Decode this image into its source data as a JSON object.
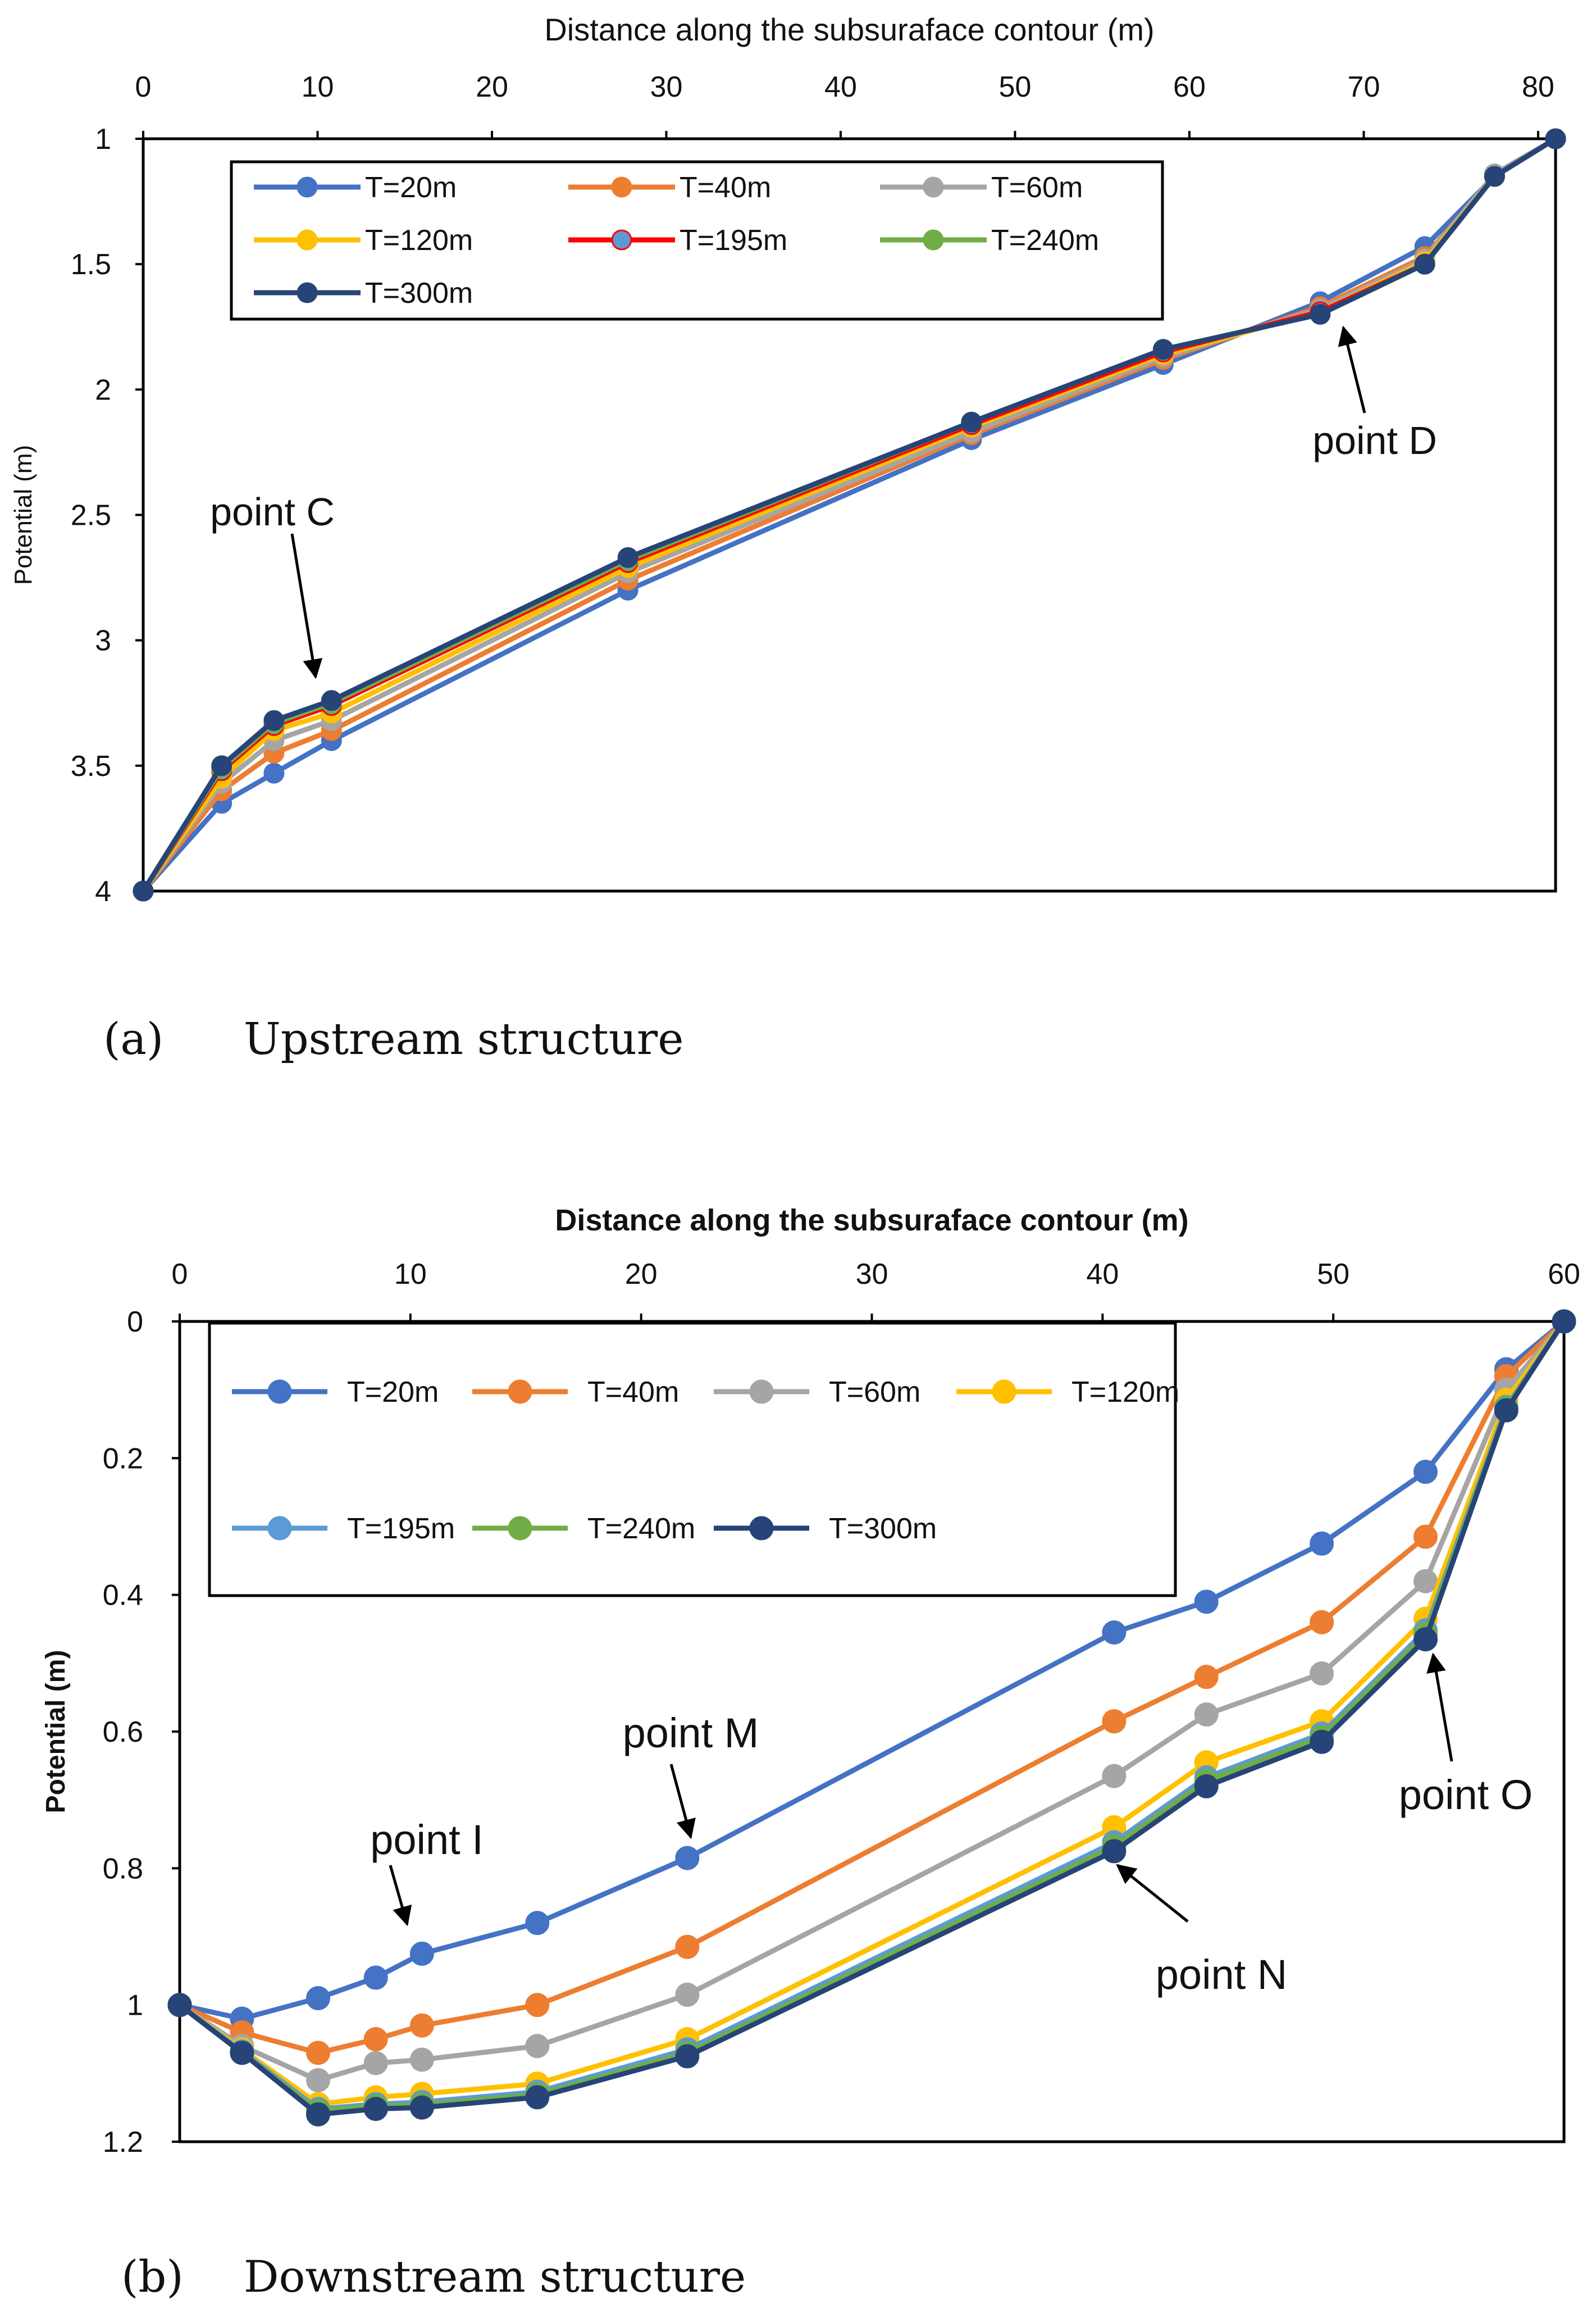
{
  "chart_data": [
    {
      "type": "line",
      "panel": "a",
      "xlabel": "Distance along the subsuraface contour (m)",
      "ylabel": "Potential (m)",
      "xlim": [
        0,
        81
      ],
      "ylim": [
        1,
        4
      ],
      "y_inverted": true,
      "x_axis_position": "top",
      "xticks": [
        0,
        10,
        20,
        30,
        40,
        50,
        60,
        70,
        80
      ],
      "yticks": [
        1,
        1.5,
        2,
        2.5,
        3,
        3.5,
        4
      ],
      "ytick_labels": [
        "1",
        "1.5",
        "2",
        "2.5",
        "3",
        "3.5",
        "4"
      ],
      "legend_placement": "top-left",
      "legend_columns": 3,
      "x": [
        0,
        4.5,
        7.5,
        10.8,
        27.8,
        47.5,
        58.5,
        67.5,
        73.5,
        77.5,
        81
      ],
      "series": [
        {
          "name": "T=20m",
          "color": "#4472C4",
          "values": [
            4.0,
            3.65,
            3.53,
            3.4,
            2.8,
            2.2,
            1.9,
            1.65,
            1.43,
            1.15,
            1.0
          ]
        },
        {
          "name": "T=40m",
          "color": "#ED7D31",
          "values": [
            4.0,
            3.6,
            3.45,
            3.36,
            2.76,
            2.18,
            1.88,
            1.67,
            1.47,
            1.15,
            1.0
          ]
        },
        {
          "name": "T=60m",
          "color": "#A5A5A5",
          "values": [
            4.0,
            3.57,
            3.4,
            3.32,
            2.73,
            2.17,
            1.87,
            1.68,
            1.48,
            1.14,
            1.0
          ]
        },
        {
          "name": "T=120m",
          "color": "#FFC000",
          "values": [
            4.0,
            3.55,
            3.36,
            3.29,
            2.71,
            2.15,
            1.86,
            1.69,
            1.49,
            1.15,
            1.0
          ]
        },
        {
          "name": "T=195m",
          "color": "#FF0000",
          "marker_color": "#5B9BD5",
          "values": [
            4.0,
            3.52,
            3.34,
            3.26,
            2.69,
            2.14,
            1.85,
            1.69,
            1.5,
            1.15,
            1.0
          ]
        },
        {
          "name": "T=240m",
          "color": "#70AD47",
          "values": [
            4.0,
            3.51,
            3.33,
            3.25,
            2.68,
            2.13,
            1.84,
            1.7,
            1.5,
            1.15,
            1.0
          ]
        },
        {
          "name": "T=300m",
          "color": "#264478",
          "values": [
            4.0,
            3.5,
            3.32,
            3.24,
            2.67,
            2.13,
            1.84,
            1.7,
            1.5,
            1.15,
            1.0
          ]
        }
      ],
      "annotations": [
        {
          "text": "point C",
          "x": 10.8,
          "y": 3.24
        },
        {
          "text": "point D",
          "x": 67.5,
          "y": 1.7
        }
      ],
      "caption_letter": "(a)",
      "caption_text": "Upstream structure"
    },
    {
      "type": "line",
      "panel": "b",
      "xlabel": "Distance along the subsuraface contour (m)",
      "ylabel": "Potential (m)",
      "xlim": [
        0,
        60
      ],
      "ylim": [
        0,
        1.2
      ],
      "y_inverted": true,
      "x_axis_position": "top",
      "xticks": [
        0,
        10,
        20,
        30,
        40,
        50,
        60
      ],
      "yticks": [
        0,
        0.2,
        0.4,
        0.6,
        0.8,
        1,
        1.2
      ],
      "ytick_labels": [
        "0",
        "0.2",
        "0.4",
        "0.6",
        "0.8",
        "1",
        "1.2"
      ],
      "legend_placement": "top-left",
      "legend_columns": 4,
      "x": [
        0,
        2.7,
        6,
        8.5,
        10.5,
        15.5,
        22,
        40.5,
        44.5,
        49.5,
        54,
        57.5,
        60
      ],
      "series": [
        {
          "name": "T=20m",
          "color": "#4472C4",
          "values": [
            1.0,
            1.02,
            0.99,
            0.96,
            0.925,
            0.88,
            0.785,
            0.455,
            0.41,
            0.325,
            0.22,
            0.07,
            0.0
          ]
        },
        {
          "name": "T=40m",
          "color": "#ED7D31",
          "values": [
            1.0,
            1.04,
            1.07,
            1.05,
            1.03,
            1.0,
            0.915,
            0.585,
            0.52,
            0.44,
            0.315,
            0.08,
            0.0
          ]
        },
        {
          "name": "T=60m",
          "color": "#A5A5A5",
          "values": [
            1.0,
            1.06,
            1.11,
            1.085,
            1.08,
            1.06,
            0.985,
            0.665,
            0.575,
            0.515,
            0.38,
            0.1,
            0.0
          ]
        },
        {
          "name": "T=120m",
          "color": "#FFC000",
          "values": [
            1.0,
            1.065,
            1.145,
            1.135,
            1.13,
            1.115,
            1.05,
            0.74,
            0.645,
            0.585,
            0.435,
            0.115,
            0.0
          ]
        },
        {
          "name": "T=195m",
          "color": "#5B9BD5",
          "values": [
            1.0,
            1.068,
            1.152,
            1.145,
            1.142,
            1.127,
            1.065,
            0.762,
            0.667,
            0.603,
            0.452,
            0.125,
            0.0
          ]
        },
        {
          "name": "T=240m",
          "color": "#70AD47",
          "values": [
            1.0,
            1.07,
            1.155,
            1.148,
            1.146,
            1.131,
            1.07,
            0.768,
            0.672,
            0.608,
            0.457,
            0.127,
            0.0
          ]
        },
        {
          "name": "T=300m",
          "color": "#264478",
          "values": [
            1.0,
            1.07,
            1.16,
            1.152,
            1.15,
            1.135,
            1.075,
            0.775,
            0.68,
            0.615,
            0.465,
            0.13,
            0.0
          ]
        }
      ],
      "annotations": [
        {
          "text": "point I",
          "x": 10.5,
          "y": 0.925
        },
        {
          "text": "point M",
          "x": 22,
          "y": 0.785
        },
        {
          "text": "point N",
          "x": 40.5,
          "y": 0.775
        },
        {
          "text": "point O",
          "x": 54,
          "y": 0.465
        }
      ],
      "caption_letter": "(b)",
      "caption_text": "Downstream structure"
    }
  ]
}
